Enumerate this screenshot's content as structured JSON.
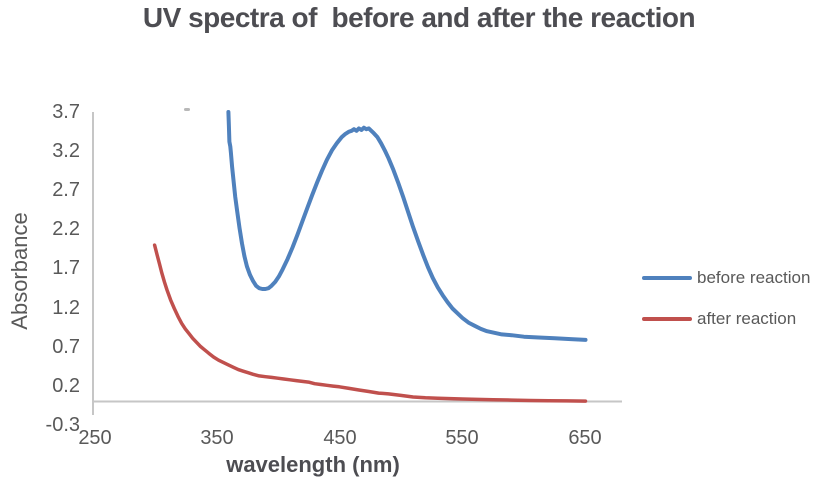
{
  "chart_data": {
    "type": "line",
    "title": "UV spectra of  before and after the reaction",
    "xlabel": "wavelength (nm)",
    "ylabel": "Absorbance",
    "xlim": [
      250,
      650
    ],
    "ylim": [
      -0.3,
      3.7
    ],
    "x_ticks": [
      "250",
      "350",
      "450",
      "550",
      "650"
    ],
    "y_ticks": [
      "3.7",
      "3.2",
      "2.7",
      "2.2",
      "1.7",
      "1.2",
      "0.7",
      "0.2",
      "-0.3"
    ],
    "grid": false,
    "legend_position": "right-middle",
    "axis_color": "#c6c6c6",
    "text_color": "#595959",
    "series": [
      {
        "name": "before reaction",
        "color": "#4f81bd",
        "x": [
          360,
          360.4,
          360.8,
          361.5,
          362,
          363,
          364,
          365.5,
          367,
          369,
          371,
          373,
          375,
          377.5,
          380,
          382.5,
          385,
          387.5,
          390,
          392.5,
          395,
          398,
          401,
          404,
          408,
          412,
          416,
          420,
          424,
          428,
          432,
          436,
          440,
          444,
          448,
          452,
          455,
          458,
          460,
          462,
          464,
          466,
          468,
          470,
          472,
          474,
          476,
          478,
          481,
          484,
          487,
          490,
          494,
          498,
          502,
          506,
          510,
          514,
          518,
          522,
          526,
          530,
          534,
          538,
          542,
          546,
          550,
          555,
          560,
          565,
          570,
          576,
          582,
          590,
          600,
          612,
          625,
          638,
          650
        ],
        "y": [
          3.7,
          3.52,
          3.32,
          3.26,
          3.18,
          3.0,
          2.84,
          2.62,
          2.44,
          2.22,
          2.02,
          1.86,
          1.73,
          1.62,
          1.54,
          1.48,
          1.45,
          1.44,
          1.44,
          1.45,
          1.48,
          1.53,
          1.6,
          1.69,
          1.82,
          1.97,
          2.13,
          2.3,
          2.47,
          2.64,
          2.8,
          2.95,
          3.09,
          3.21,
          3.3,
          3.38,
          3.42,
          3.45,
          3.46,
          3.48,
          3.46,
          3.49,
          3.47,
          3.5,
          3.48,
          3.49,
          3.46,
          3.43,
          3.38,
          3.3,
          3.21,
          3.11,
          2.96,
          2.79,
          2.61,
          2.42,
          2.23,
          2.05,
          1.88,
          1.72,
          1.58,
          1.46,
          1.36,
          1.27,
          1.19,
          1.13,
          1.07,
          1.01,
          0.97,
          0.93,
          0.9,
          0.88,
          0.86,
          0.85,
          0.83,
          0.82,
          0.81,
          0.8,
          0.79
        ]
      },
      {
        "name": "after reaction",
        "color": "#c0504d",
        "x": [
          300,
          302,
          304,
          306,
          308,
          310,
          313,
          316,
          319,
          322,
          325,
          328,
          331,
          334,
          337,
          340,
          344,
          348,
          352,
          356,
          360,
          364,
          368,
          372,
          376,
          380,
          385,
          390,
          395,
          400,
          405,
          410,
          415,
          420,
          425,
          430,
          435,
          440,
          445,
          450,
          458,
          466,
          474,
          482,
          490,
          500,
          510,
          520,
          530,
          540,
          550,
          562,
          575,
          590,
          605,
          620,
          635,
          650
        ],
        "y": [
          2.0,
          1.88,
          1.76,
          1.64,
          1.53,
          1.43,
          1.3,
          1.19,
          1.09,
          1.0,
          0.93,
          0.87,
          0.81,
          0.76,
          0.71,
          0.67,
          0.62,
          0.57,
          0.53,
          0.5,
          0.47,
          0.44,
          0.41,
          0.39,
          0.37,
          0.35,
          0.33,
          0.32,
          0.31,
          0.3,
          0.29,
          0.28,
          0.27,
          0.26,
          0.25,
          0.23,
          0.22,
          0.21,
          0.2,
          0.19,
          0.17,
          0.15,
          0.13,
          0.11,
          0.1,
          0.08,
          0.06,
          0.05,
          0.045,
          0.04,
          0.035,
          0.03,
          0.025,
          0.02,
          0.015,
          0.012,
          0.01,
          0.008
        ]
      }
    ]
  }
}
